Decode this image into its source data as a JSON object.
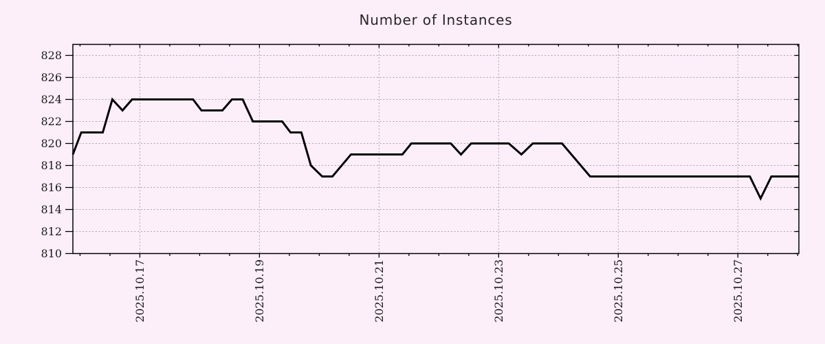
{
  "page": {
    "background_color": "#fdeffa"
  },
  "chart_data": {
    "type": "line",
    "title": "Number of Instances",
    "xlabel": "",
    "ylabel": "",
    "x_unit": "t = days since 2025-10-15 00:00 (positions estimated from gridlines)",
    "xlim": [
      0.88,
      13.02
    ],
    "ylim": [
      810,
      829
    ],
    "yticks": [
      810,
      812,
      814,
      816,
      818,
      820,
      822,
      824,
      826,
      828
    ],
    "xticks": [
      {
        "t": 2,
        "label": "2025.10.17"
      },
      {
        "t": 4,
        "label": "2025.10.19"
      },
      {
        "t": 6,
        "label": "2025.10.21"
      },
      {
        "t": 8,
        "label": "2025.10.23"
      },
      {
        "t": 10,
        "label": "2025.10.25"
      },
      {
        "t": 12,
        "label": "2025.10.27"
      }
    ],
    "x_minor_tick_step": 0.5,
    "grid": true,
    "legend": false,
    "line_color": "#000000",
    "line_width": 3,
    "frame_color": "#000000",
    "grid_color": "#a8a1a9",
    "text_color": "#1a1a1a",
    "points": [
      [
        0.88,
        819
      ],
      [
        1.02,
        821
      ],
      [
        1.38,
        821
      ],
      [
        1.54,
        824
      ],
      [
        1.71,
        823
      ],
      [
        1.87,
        824
      ],
      [
        2.89,
        824
      ],
      [
        3.03,
        823
      ],
      [
        3.38,
        823
      ],
      [
        3.54,
        824
      ],
      [
        3.72,
        824
      ],
      [
        3.89,
        822
      ],
      [
        4.38,
        822
      ],
      [
        4.52,
        821
      ],
      [
        4.7,
        821
      ],
      [
        4.86,
        818
      ],
      [
        5.05,
        817
      ],
      [
        5.22,
        817
      ],
      [
        5.53,
        819
      ],
      [
        6.39,
        819
      ],
      [
        6.54,
        820
      ],
      [
        7.2,
        820
      ],
      [
        7.37,
        819
      ],
      [
        7.54,
        820
      ],
      [
        8.17,
        820
      ],
      [
        8.38,
        819
      ],
      [
        8.57,
        820
      ],
      [
        9.06,
        820
      ],
      [
        9.53,
        817
      ],
      [
        12.2,
        817
      ],
      [
        12.38,
        815
      ],
      [
        12.56,
        817
      ],
      [
        13.02,
        817
      ]
    ]
  }
}
